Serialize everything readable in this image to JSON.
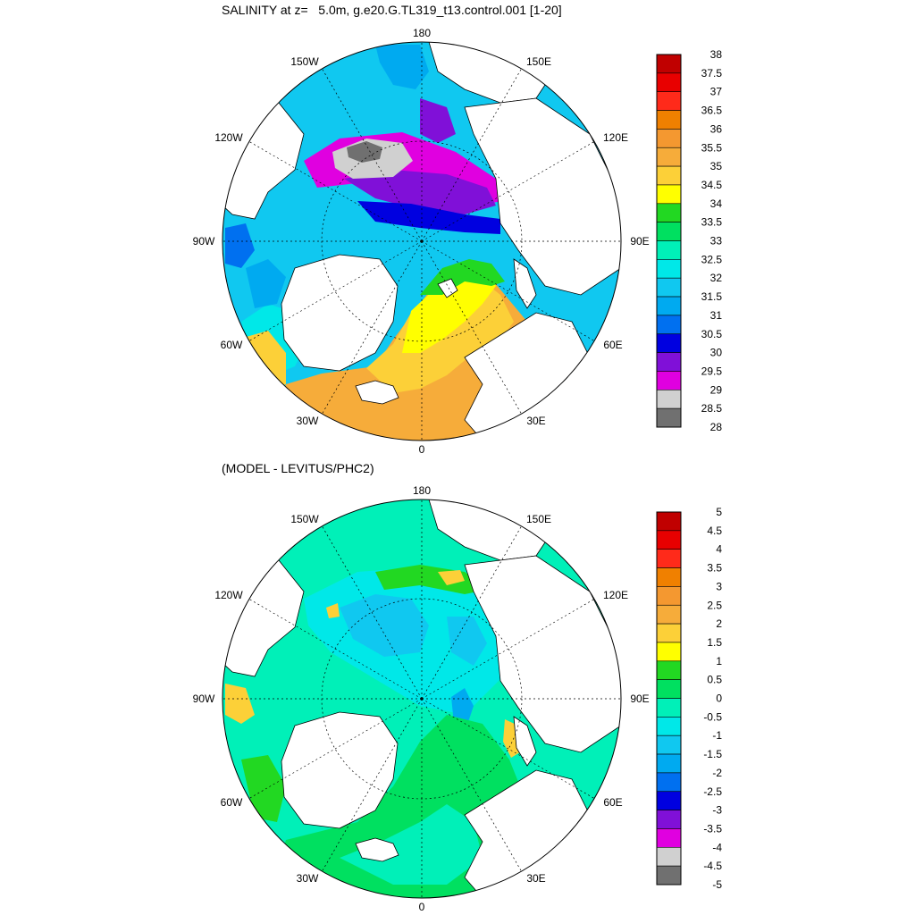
{
  "figure": {
    "top_title": "SALINITY at z=   5.0m, g.e20.G.TL319_t13.control.001 [1-20]",
    "bottom_title": "(MODEL - LEVITUS/PHC2)"
  },
  "longitude_labels": [
    "180",
    "150E",
    "120E",
    "90E",
    "60E",
    "30E",
    "0",
    "30W",
    "60W",
    "90W",
    "120W",
    "150W"
  ],
  "panels": [
    {
      "name": "salinity",
      "colorbar": {
        "labels": [
          "38",
          "37.5",
          "37",
          "36.5",
          "36",
          "35.5",
          "35",
          "34.5",
          "34",
          "33.5",
          "33",
          "32.5",
          "32",
          "31.5",
          "31",
          "30.5",
          "30",
          "29.5",
          "29",
          "28.5",
          "28"
        ],
        "colors": [
          "#c00000",
          "#e80000",
          "#ff2a1a",
          "#f08000",
          "#f49830",
          "#f6ac3a",
          "#fcd038",
          "#ffff00",
          "#22d822",
          "#00e060",
          "#00f0b8",
          "#00e8e8",
          "#10c8f0",
          "#00aaf0",
          "#0070f0",
          "#0000e0",
          "#8010d8",
          "#e000e0",
          "#d0d0d0",
          "#707070"
        ]
      }
    },
    {
      "name": "difference",
      "colorbar": {
        "labels": [
          "5",
          "4.5",
          "4",
          "3.5",
          "3",
          "2.5",
          "2",
          "1.5",
          "1",
          "0.5",
          "0",
          "-0.5",
          "-1",
          "-1.5",
          "-2",
          "-2.5",
          "-3",
          "-3.5",
          "-4",
          "-4.5",
          "-5"
        ],
        "colors": [
          "#c00000",
          "#e80000",
          "#ff2a1a",
          "#f08000",
          "#f49830",
          "#f6ac3a",
          "#fcd038",
          "#ffff00",
          "#22d822",
          "#00e060",
          "#00f0b8",
          "#00e8e8",
          "#10c8f0",
          "#00aaf0",
          "#0070f0",
          "#0000e0",
          "#8010d8",
          "#e000e0",
          "#d0d0d0",
          "#707070"
        ]
      }
    }
  ]
}
